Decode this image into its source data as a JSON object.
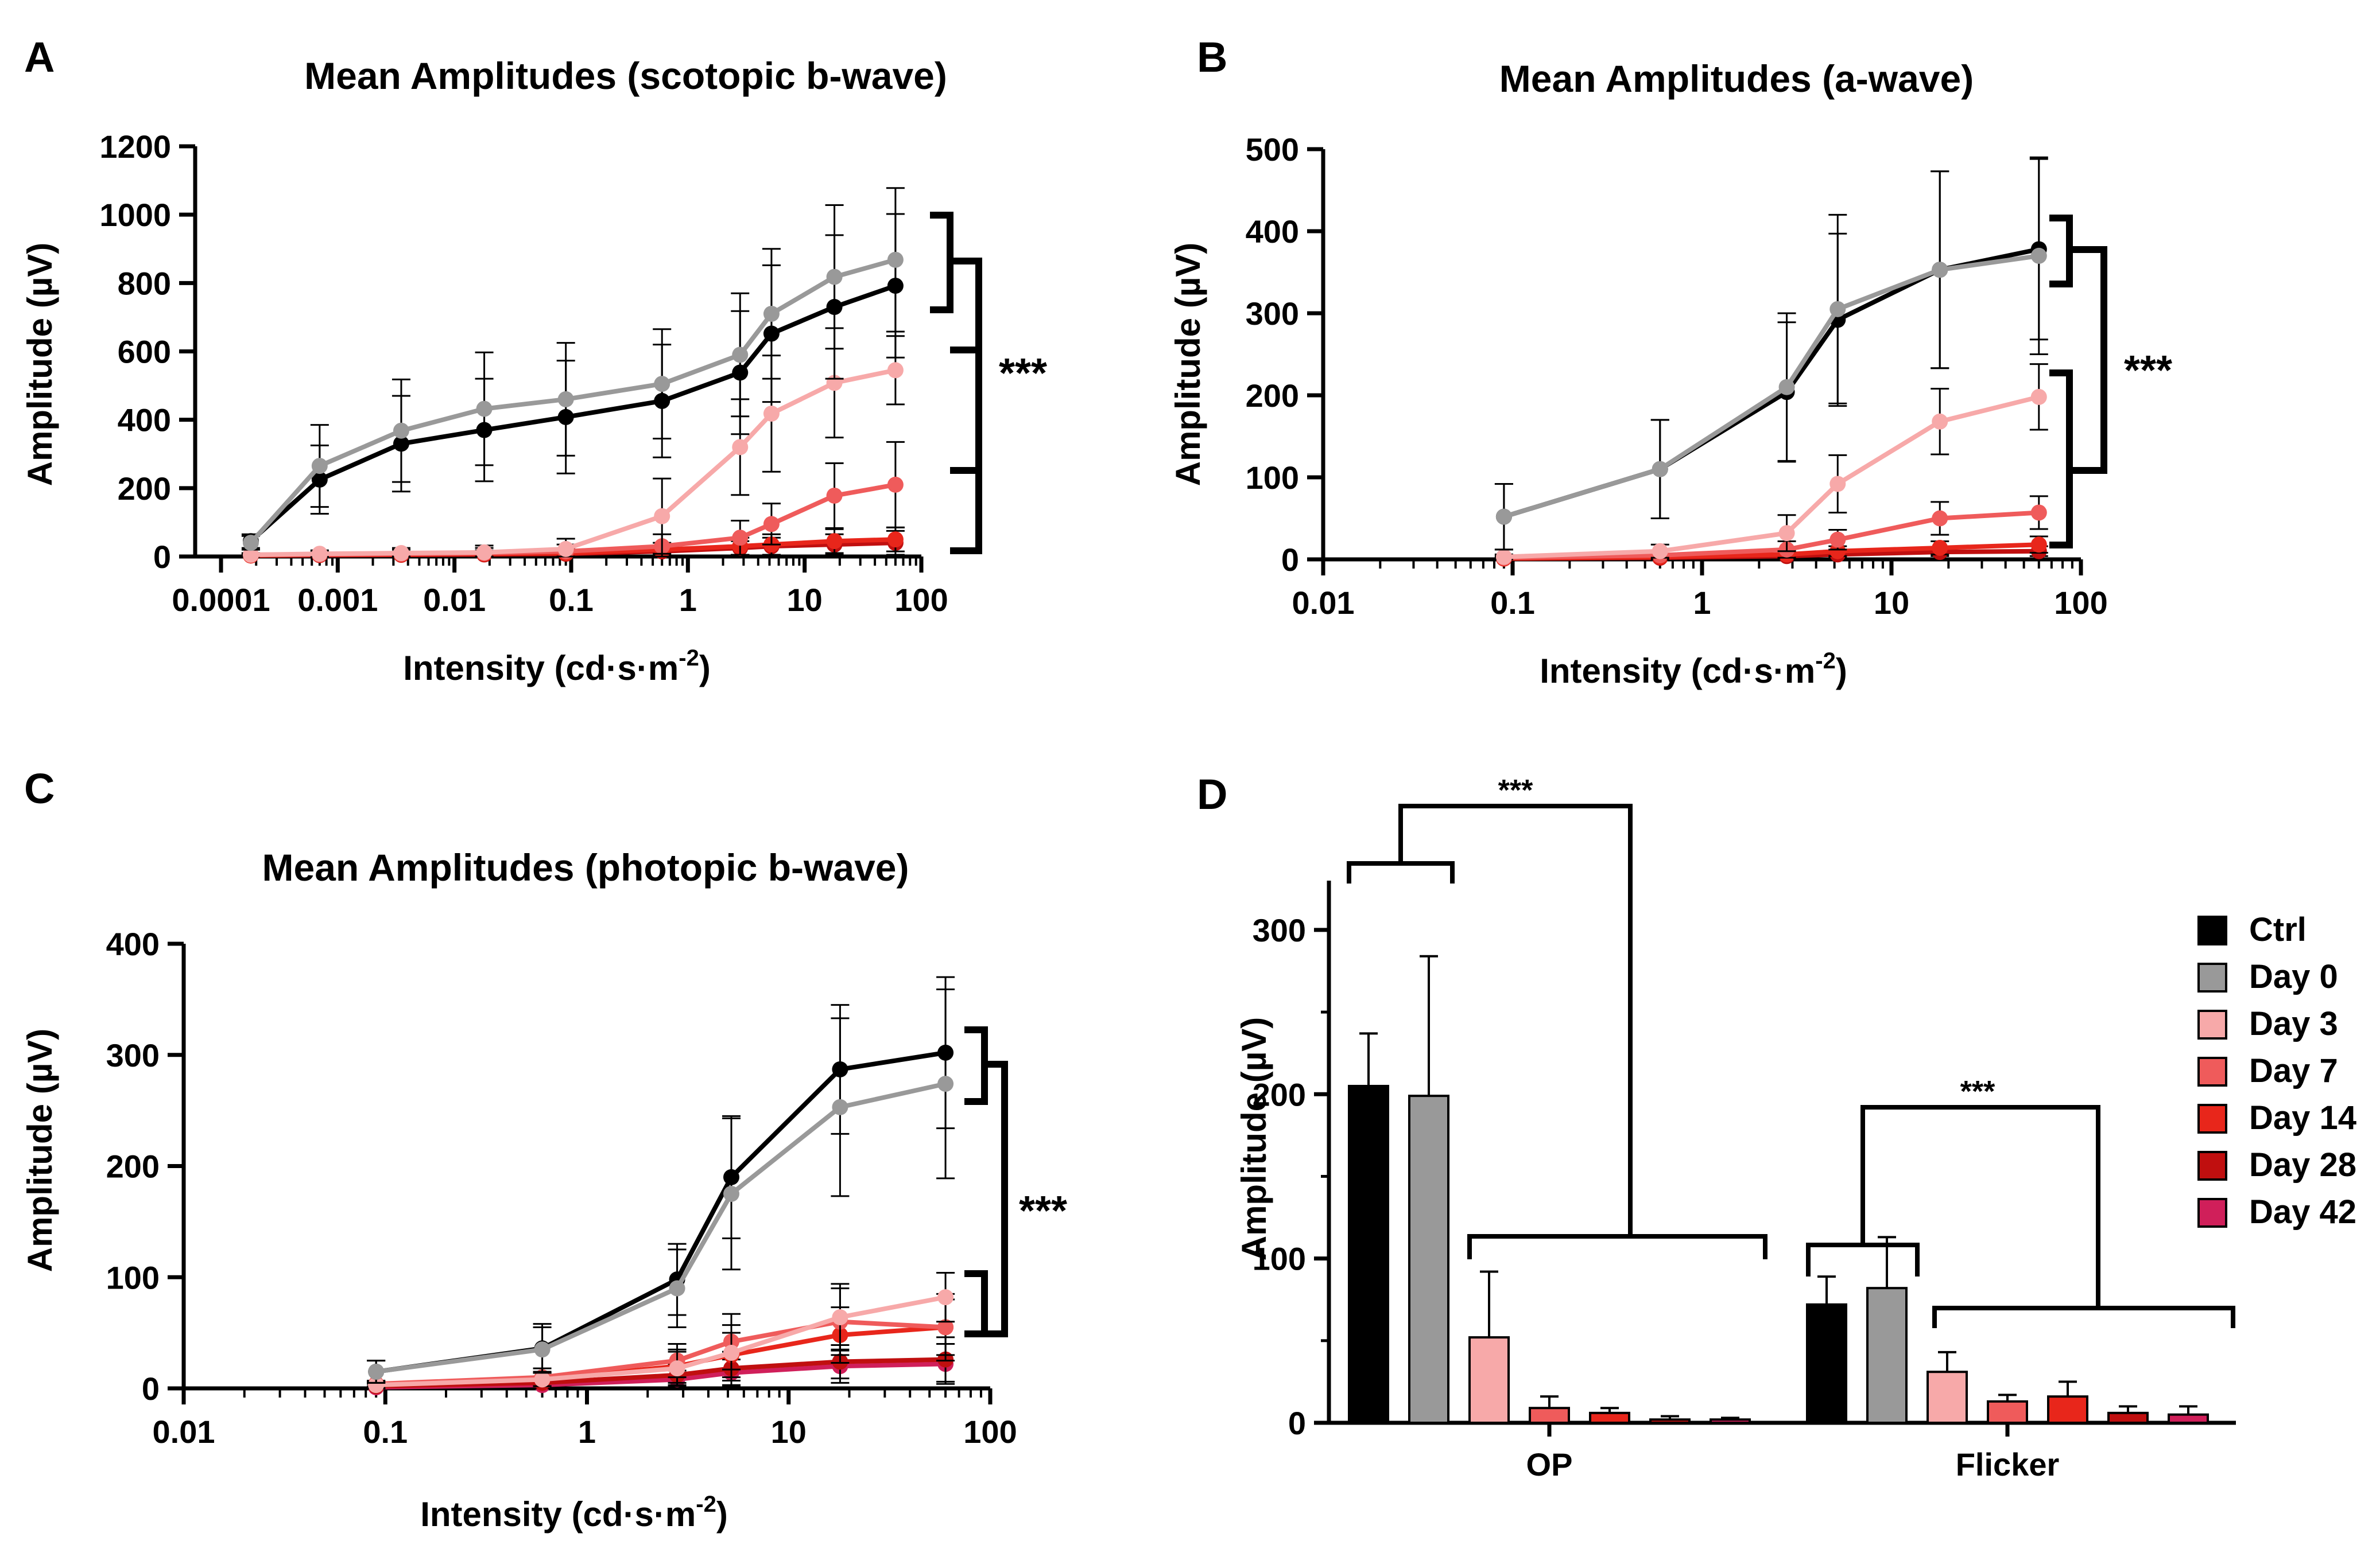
{
  "figure": {
    "series_names": [
      "Ctrl",
      "Day 0",
      "Day 3",
      "Day 7",
      "Day 14",
      "Day 28",
      "Day 42"
    ],
    "series_colors": [
      "#000000",
      "#999999",
      "#f7a9a9",
      "#ef5b5b",
      "#e8261b",
      "#c00f0f",
      "#d01f5a"
    ],
    "significance": "***"
  },
  "chart_data": [
    {
      "panel": "A",
      "type": "line",
      "title": "Mean Amplitudes (scotopic b-wave)",
      "xlabel": "Intensity (cd·s·m",
      "xlabel_exp": "-2",
      "xlabel_close": ")",
      "ylabel": "Amplitude (µV)",
      "xscale": "log",
      "xlim": [
        0.0001,
        100
      ],
      "ylim": [
        0,
        1200
      ],
      "xticks": [
        0.0001,
        0.001,
        0.01,
        0.1,
        1,
        10,
        100
      ],
      "xtick_labels": [
        "0.0001",
        "0.001",
        "0.01",
        "0.1",
        "1",
        "10",
        "100"
      ],
      "yticks": [
        0,
        200,
        400,
        600,
        800,
        1000,
        1200
      ],
      "ytick_labels": [
        "0",
        "200",
        "400",
        "600",
        "800",
        "1000",
        "1200"
      ],
      "x": [
        0.00018,
        0.0007,
        0.0035,
        0.018,
        0.09,
        0.6,
        2.8,
        5.2,
        18,
        60
      ],
      "series": [
        {
          "name": "Day 0",
          "values": [
            40,
            265,
            368,
            432,
            460,
            505,
            590,
            710,
            818,
            868
          ],
          "err": [
            20,
            120,
            150,
            165,
            165,
            160,
            180,
            190,
            210,
            210
          ]
        },
        {
          "name": "Ctrl",
          "values": [
            45,
            225,
            330,
            370,
            408,
            455,
            538,
            652,
            730,
            792
          ],
          "err": [
            20,
            100,
            140,
            150,
            165,
            165,
            180,
            200,
            210,
            210
          ]
        },
        {
          "name": "Day 3",
          "values": [
            5,
            8,
            10,
            12,
            22,
            118,
            320,
            418,
            508,
            545
          ],
          "err": [
            5,
            10,
            15,
            20,
            30,
            110,
            140,
            170,
            160,
            100
          ]
        },
        {
          "name": "Day 7",
          "values": [
            5,
            6,
            8,
            10,
            15,
            30,
            55,
            95,
            178,
            210
          ],
          "err": [
            5,
            8,
            12,
            15,
            20,
            35,
            50,
            60,
            95,
            125
          ]
        },
        {
          "name": "Day 14",
          "values": [
            3,
            5,
            6,
            8,
            10,
            20,
            30,
            35,
            45,
            50
          ],
          "err": [
            3,
            5,
            8,
            10,
            12,
            20,
            25,
            30,
            35,
            35
          ]
        },
        {
          "name": "Day 28",
          "values": [
            3,
            4,
            5,
            6,
            8,
            15,
            25,
            30,
            35,
            40
          ],
          "err": [
            3,
            5,
            8,
            10,
            12,
            15,
            20,
            25,
            30,
            35
          ]
        }
      ],
      "bracket_groups": [
        [
          "Ctrl",
          "Day 0"
        ],
        [
          "Day 3",
          "Day 7",
          "Day 14",
          "Day 28"
        ]
      ],
      "annotation": "***"
    },
    {
      "panel": "B",
      "type": "line",
      "title": "Mean Amplitudes (a-wave)",
      "xlabel": "Intensity (cd·s·m",
      "xlabel_exp": "-2",
      "xlabel_close": ")",
      "ylabel": "Amplitude (µV)",
      "xscale": "log",
      "xlim": [
        0.01,
        100
      ],
      "ylim": [
        0,
        500
      ],
      "xticks": [
        0.01,
        0.1,
        1,
        10,
        100
      ],
      "xtick_labels": [
        "0.01",
        "0.1",
        "1",
        "10",
        "100"
      ],
      "yticks": [
        0,
        100,
        200,
        300,
        400,
        500
      ],
      "ytick_labels": [
        "0",
        "100",
        "200",
        "300",
        "400",
        "500"
      ],
      "x": [
        0.09,
        0.6,
        2.8,
        5.2,
        18,
        60
      ],
      "series": [
        {
          "name": "Day 0",
          "values": [
            52,
            110,
            210,
            305,
            353,
            370
          ],
          "err": [
            40,
            60,
            90,
            115,
            120,
            120
          ]
        },
        {
          "name": "Ctrl",
          "values": [
            52,
            110,
            204,
            292,
            353,
            378
          ],
          "err": [
            40,
            60,
            85,
            105,
            120,
            110
          ]
        },
        {
          "name": "Day 3",
          "values": [
            3,
            10,
            32,
            92,
            168,
            198
          ],
          "err": [
            3,
            8,
            22,
            35,
            40,
            40
          ]
        },
        {
          "name": "Day 7",
          "values": [
            2,
            5,
            12,
            24,
            50,
            57
          ],
          "err": [
            2,
            5,
            10,
            12,
            20,
            20
          ]
        },
        {
          "name": "Day 14",
          "values": [
            1,
            3,
            6,
            10,
            14,
            18
          ],
          "err": [
            1,
            3,
            5,
            6,
            8,
            10
          ]
        },
        {
          "name": "Day 28",
          "values": [
            1,
            2,
            4,
            6,
            9,
            10
          ],
          "err": [
            1,
            2,
            3,
            4,
            5,
            6
          ]
        }
      ],
      "bracket_groups": [
        [
          "Ctrl",
          "Day 0"
        ],
        [
          "Day 3",
          "Day 7",
          "Day 14",
          "Day 28"
        ]
      ],
      "annotation": "***"
    },
    {
      "panel": "C",
      "type": "line",
      "title": "Mean Amplitudes (photopic b-wave)",
      "xlabel": "Intensity (cd·s·m",
      "xlabel_exp": "-2",
      "xlabel_close": ")",
      "ylabel": "Amplitude (µV)",
      "xscale": "log",
      "xlim": [
        0.01,
        100
      ],
      "ylim": [
        0,
        400
      ],
      "xticks": [
        0.01,
        0.1,
        1,
        10,
        100
      ],
      "xtick_labels": [
        "0.01",
        "0.1",
        "1",
        "10",
        "100"
      ],
      "yticks": [
        0,
        100,
        200,
        300,
        400
      ],
      "ytick_labels": [
        "0",
        "100",
        "200",
        "300",
        "400"
      ],
      "x": [
        0.09,
        0.6,
        2.8,
        5.2,
        18,
        60
      ],
      "series": [
        {
          "name": "Day 0",
          "values": [
            15,
            35,
            90,
            175,
            253,
            274
          ],
          "err": [
            10,
            20,
            35,
            68,
            80,
            85
          ]
        },
        {
          "name": "Ctrl",
          "values": [
            15,
            36,
            98,
            190,
            287,
            302
          ],
          "err": [
            10,
            22,
            32,
            55,
            58,
            68
          ]
        },
        {
          "name": "Day 3",
          "values": [
            3,
            8,
            18,
            32,
            64,
            82
          ],
          "err": [
            3,
            6,
            15,
            25,
            30,
            22
          ]
        },
        {
          "name": "Day 7",
          "values": [
            4,
            10,
            25,
            42,
            60,
            55
          ],
          "err": [
            3,
            8,
            15,
            25,
            30,
            30
          ]
        },
        {
          "name": "Day 14",
          "values": [
            3,
            8,
            20,
            30,
            48,
            55
          ],
          "err": [
            3,
            6,
            15,
            20,
            25,
            25
          ]
        },
        {
          "name": "Day 28",
          "values": [
            2,
            5,
            12,
            18,
            24,
            26
          ],
          "err": [
            2,
            5,
            10,
            15,
            15,
            20
          ]
        },
        {
          "name": "Day 42",
          "values": [
            1,
            3,
            8,
            14,
            20,
            22
          ],
          "err": [
            1,
            4,
            8,
            12,
            15,
            18
          ]
        }
      ],
      "bracket_groups": [
        [
          "Ctrl",
          "Day 0"
        ],
        [
          "Day 3",
          "Day 7",
          "Day 14",
          "Day 28",
          "Day 42"
        ]
      ],
      "annotation": "***"
    },
    {
      "panel": "D",
      "type": "bar",
      "ylabel": "Amplitude (µV)",
      "ylim": [
        0,
        330
      ],
      "yticks": [
        0,
        100,
        200,
        300
      ],
      "ytick_labels": [
        "0",
        "100",
        "200",
        "300"
      ],
      "categories": [
        "OP",
        "Flicker"
      ],
      "series": [
        {
          "name": "Ctrl",
          "values": [
            205,
            72
          ],
          "err": [
            32,
            17
          ]
        },
        {
          "name": "Day 0",
          "values": [
            199,
            82
          ],
          "err": [
            85,
            31
          ]
        },
        {
          "name": "Day 3",
          "values": [
            52,
            31
          ],
          "err": [
            40,
            12
          ]
        },
        {
          "name": "Day 7",
          "values": [
            9,
            13
          ],
          "err": [
            7,
            4
          ]
        },
        {
          "name": "Day 14",
          "values": [
            6,
            16
          ],
          "err": [
            3,
            9
          ]
        },
        {
          "name": "Day 28",
          "values": [
            2,
            6
          ],
          "err": [
            2,
            4
          ]
        },
        {
          "name": "Day 42",
          "values": [
            2,
            5
          ],
          "err": [
            1,
            5
          ]
        }
      ],
      "annotations": [
        "***",
        "***"
      ],
      "legend_position": "right"
    }
  ]
}
